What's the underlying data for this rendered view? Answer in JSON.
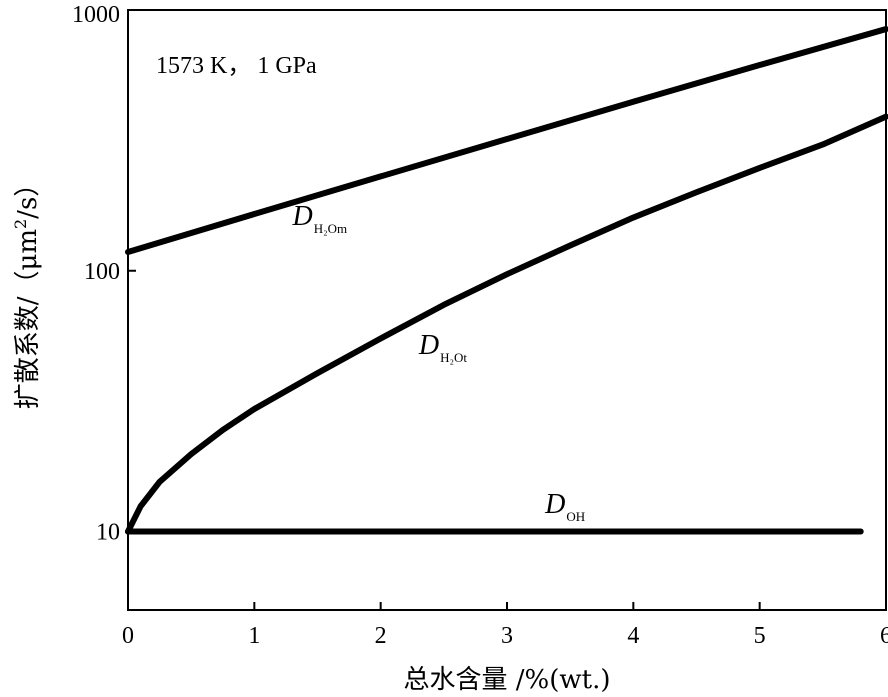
{
  "chart_data": {
    "type": "line",
    "xlabel": "总水含量 /%(wt.)",
    "ylabel_main": "扩散系数/（μm",
    "ylabel_sup": "2",
    "ylabel_tail": "/s）",
    "xlim": [
      0,
      6
    ],
    "ylim": [
      5,
      1000
    ],
    "y_scale": "log",
    "x_ticks": [
      0,
      1,
      2,
      3,
      4,
      5,
      6
    ],
    "x_tick_labels": [
      "0",
      "1",
      "2",
      "3",
      "4",
      "5",
      "6"
    ],
    "y_ticks": [
      10,
      100,
      1000
    ],
    "y_tick_labels": [
      "10",
      "100",
      "1000"
    ],
    "annotation": "1573 K， 1 GPa",
    "grid": false,
    "series": [
      {
        "label_main": "D",
        "label_sub": "H₂Om",
        "label_at": [
          1.5,
          150
        ],
        "x": [
          0,
          1,
          2,
          3,
          4,
          5,
          6
        ],
        "y": [
          118,
          165,
          230,
          320,
          445,
          615,
          845
        ]
      },
      {
        "label_main": "D",
        "label_sub": "H₂Ot",
        "label_at": [
          2.5,
          48
        ],
        "x": [
          0,
          0.1,
          0.25,
          0.5,
          0.75,
          1,
          1.5,
          2,
          2.5,
          3,
          3.5,
          4,
          4.5,
          5,
          5.5,
          6
        ],
        "y": [
          10,
          12.5,
          15.5,
          19.8,
          24.5,
          29.5,
          40.5,
          55,
          74,
          97,
          125,
          160,
          200,
          248,
          305,
          390
        ]
      },
      {
        "label_main": "D",
        "label_sub": "OH",
        "label_at": [
          3.5,
          11.8
        ],
        "x": [
          0,
          5.8
        ],
        "y": [
          10,
          10
        ]
      }
    ]
  }
}
